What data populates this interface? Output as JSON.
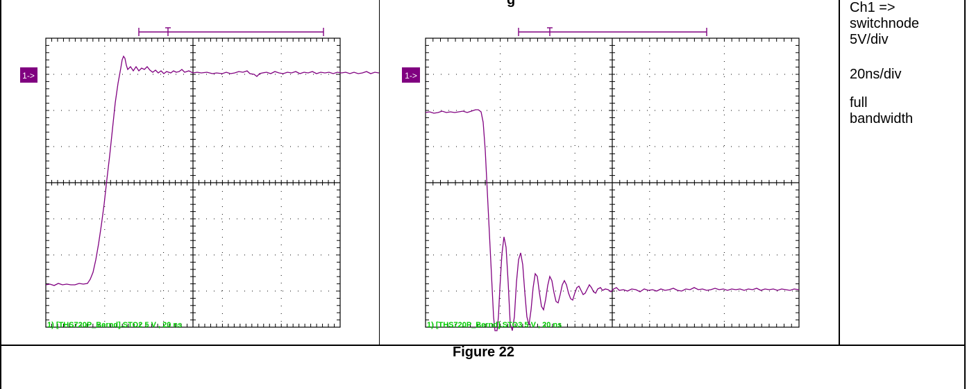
{
  "header_fragment": "g",
  "scope_left": {
    "marker": "1->",
    "footer": "1) [THS720P_Bernd].STO2 5 V , 20 ns",
    "trace_color": "#800080",
    "grid_color": "#000000",
    "footer_color": "#00cc00"
  },
  "scope_right": {
    "marker": "1->",
    "footer": "1) [THS720P_Bernd].STO3 5 V , 20 ns",
    "trace_color": "#800080",
    "grid_color": "#000000",
    "footer_color": "#00cc00"
  },
  "notes": {
    "channel": [
      "Ch1 =>",
      "switchnode",
      "5V/div"
    ],
    "timebase": "20ns/div",
    "bandwidth": [
      "full",
      "bandwidth"
    ]
  },
  "caption": "Figure 22"
}
